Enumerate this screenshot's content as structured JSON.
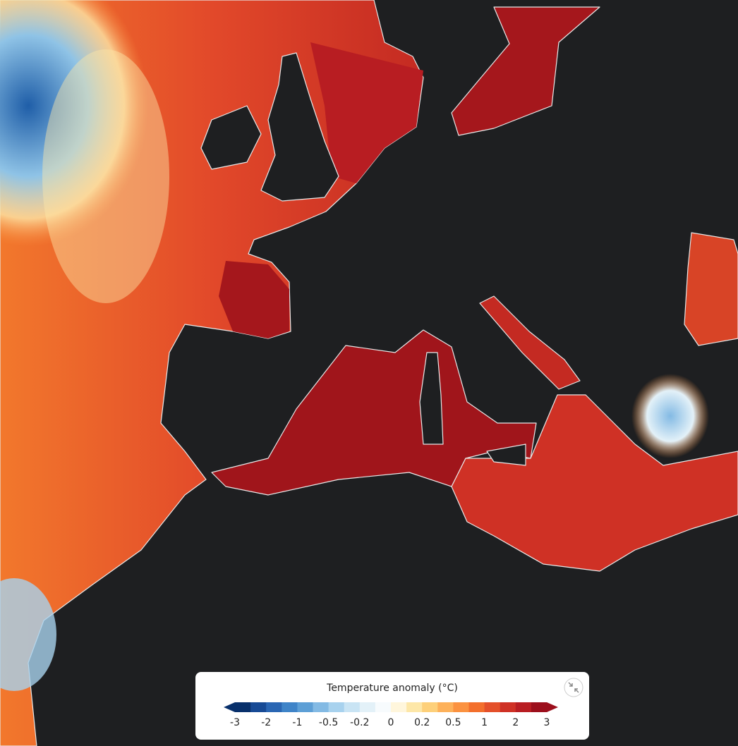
{
  "legend": {
    "title": "Temperature anomaly (°C)",
    "ticks": [
      -3,
      -2,
      -1,
      -0.5,
      -0.2,
      0,
      0.2,
      0.5,
      1,
      2,
      3
    ],
    "colors": [
      "#08306b",
      "#174a95",
      "#2a66b3",
      "#3f84c8",
      "#5d9fd6",
      "#83bae4",
      "#a8d2ee",
      "#c9e4f4",
      "#e3f1f8",
      "#f7fbfd",
      "#fff6dc",
      "#fde7a8",
      "#fdd07a",
      "#fdb15a",
      "#fb9240",
      "#f36f2c",
      "#e4502a",
      "#cf3125",
      "#b81d22",
      "#9c0f1c"
    ]
  }
}
